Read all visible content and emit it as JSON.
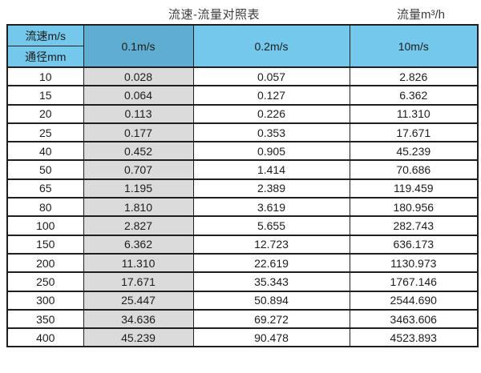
{
  "titles": {
    "left": "流速-流量对照表",
    "right": "流量m³/h"
  },
  "table": {
    "corner": {
      "top": "流速m/s",
      "bottom": "通径mm"
    },
    "velocity_columns": [
      "0.1m/s",
      "0.2m/s",
      "10m/s"
    ],
    "rows": [
      {
        "diameter": "10",
        "values": [
          "0.028",
          "0.057",
          "2.826"
        ]
      },
      {
        "diameter": "15",
        "values": [
          "0.064",
          "0.127",
          "6.362"
        ]
      },
      {
        "diameter": "20",
        "values": [
          "0.113",
          "0.226",
          "11.310"
        ]
      },
      {
        "diameter": "25",
        "values": [
          "0.177",
          "0.353",
          "17.671"
        ]
      },
      {
        "diameter": "40",
        "values": [
          "0.452",
          "0.905",
          "45.239"
        ]
      },
      {
        "diameter": "50",
        "values": [
          "0.707",
          "1.414",
          "70.686"
        ]
      },
      {
        "diameter": "65",
        "values": [
          "1.195",
          "2.389",
          "119.459"
        ]
      },
      {
        "diameter": "80",
        "values": [
          "1.810",
          "3.619",
          "180.956"
        ]
      },
      {
        "diameter": "100",
        "values": [
          "2.827",
          "5.655",
          "282.743"
        ]
      },
      {
        "diameter": "150",
        "values": [
          "6.362",
          "12.723",
          "636.173"
        ]
      },
      {
        "diameter": "200",
        "values": [
          "11.310",
          "22.619",
          "1130.973"
        ]
      },
      {
        "diameter": "250",
        "values": [
          "17.671",
          "35.343",
          "1767.146"
        ]
      },
      {
        "diameter": "300",
        "values": [
          "25.447",
          "50.894",
          "2544.690"
        ]
      },
      {
        "diameter": "350",
        "values": [
          "34.636",
          "69.272",
          "3463.606"
        ]
      },
      {
        "diameter": "400",
        "values": [
          "45.239",
          "90.478",
          "4523.893"
        ]
      }
    ]
  },
  "colors": {
    "header_blue": "#74c8ec",
    "header_blue_dark": "#5fadd0",
    "col_gray": "#dbdbdb",
    "border": "#1f1f1f"
  },
  "chart_data": {
    "type": "table",
    "title": "流速-流量对照表",
    "unit_label": "流量m³/h",
    "columns": [
      "通径mm",
      "0.1m/s",
      "0.2m/s",
      "10m/s"
    ],
    "rows": [
      [
        10,
        0.028,
        0.057,
        2.826
      ],
      [
        15,
        0.064,
        0.127,
        6.362
      ],
      [
        20,
        0.113,
        0.226,
        11.31
      ],
      [
        25,
        0.177,
        0.353,
        17.671
      ],
      [
        40,
        0.452,
        0.905,
        45.239
      ],
      [
        50,
        0.707,
        1.414,
        70.686
      ],
      [
        65,
        1.195,
        2.389,
        119.459
      ],
      [
        80,
        1.81,
        3.619,
        180.956
      ],
      [
        100,
        2.827,
        5.655,
        282.743
      ],
      [
        150,
        6.362,
        12.723,
        636.173
      ],
      [
        200,
        11.31,
        22.619,
        1130.973
      ],
      [
        250,
        17.671,
        35.343,
        1767.146
      ],
      [
        300,
        25.447,
        50.894,
        2544.69
      ],
      [
        350,
        34.636,
        69.272,
        3463.606
      ],
      [
        400,
        45.239,
        90.478,
        4523.893
      ]
    ],
    "layout": {
      "shaded_column": "0.1m/s",
      "header_fill": "#74c8ec",
      "header_fill_first_value_col": "#5fadd0"
    }
  }
}
